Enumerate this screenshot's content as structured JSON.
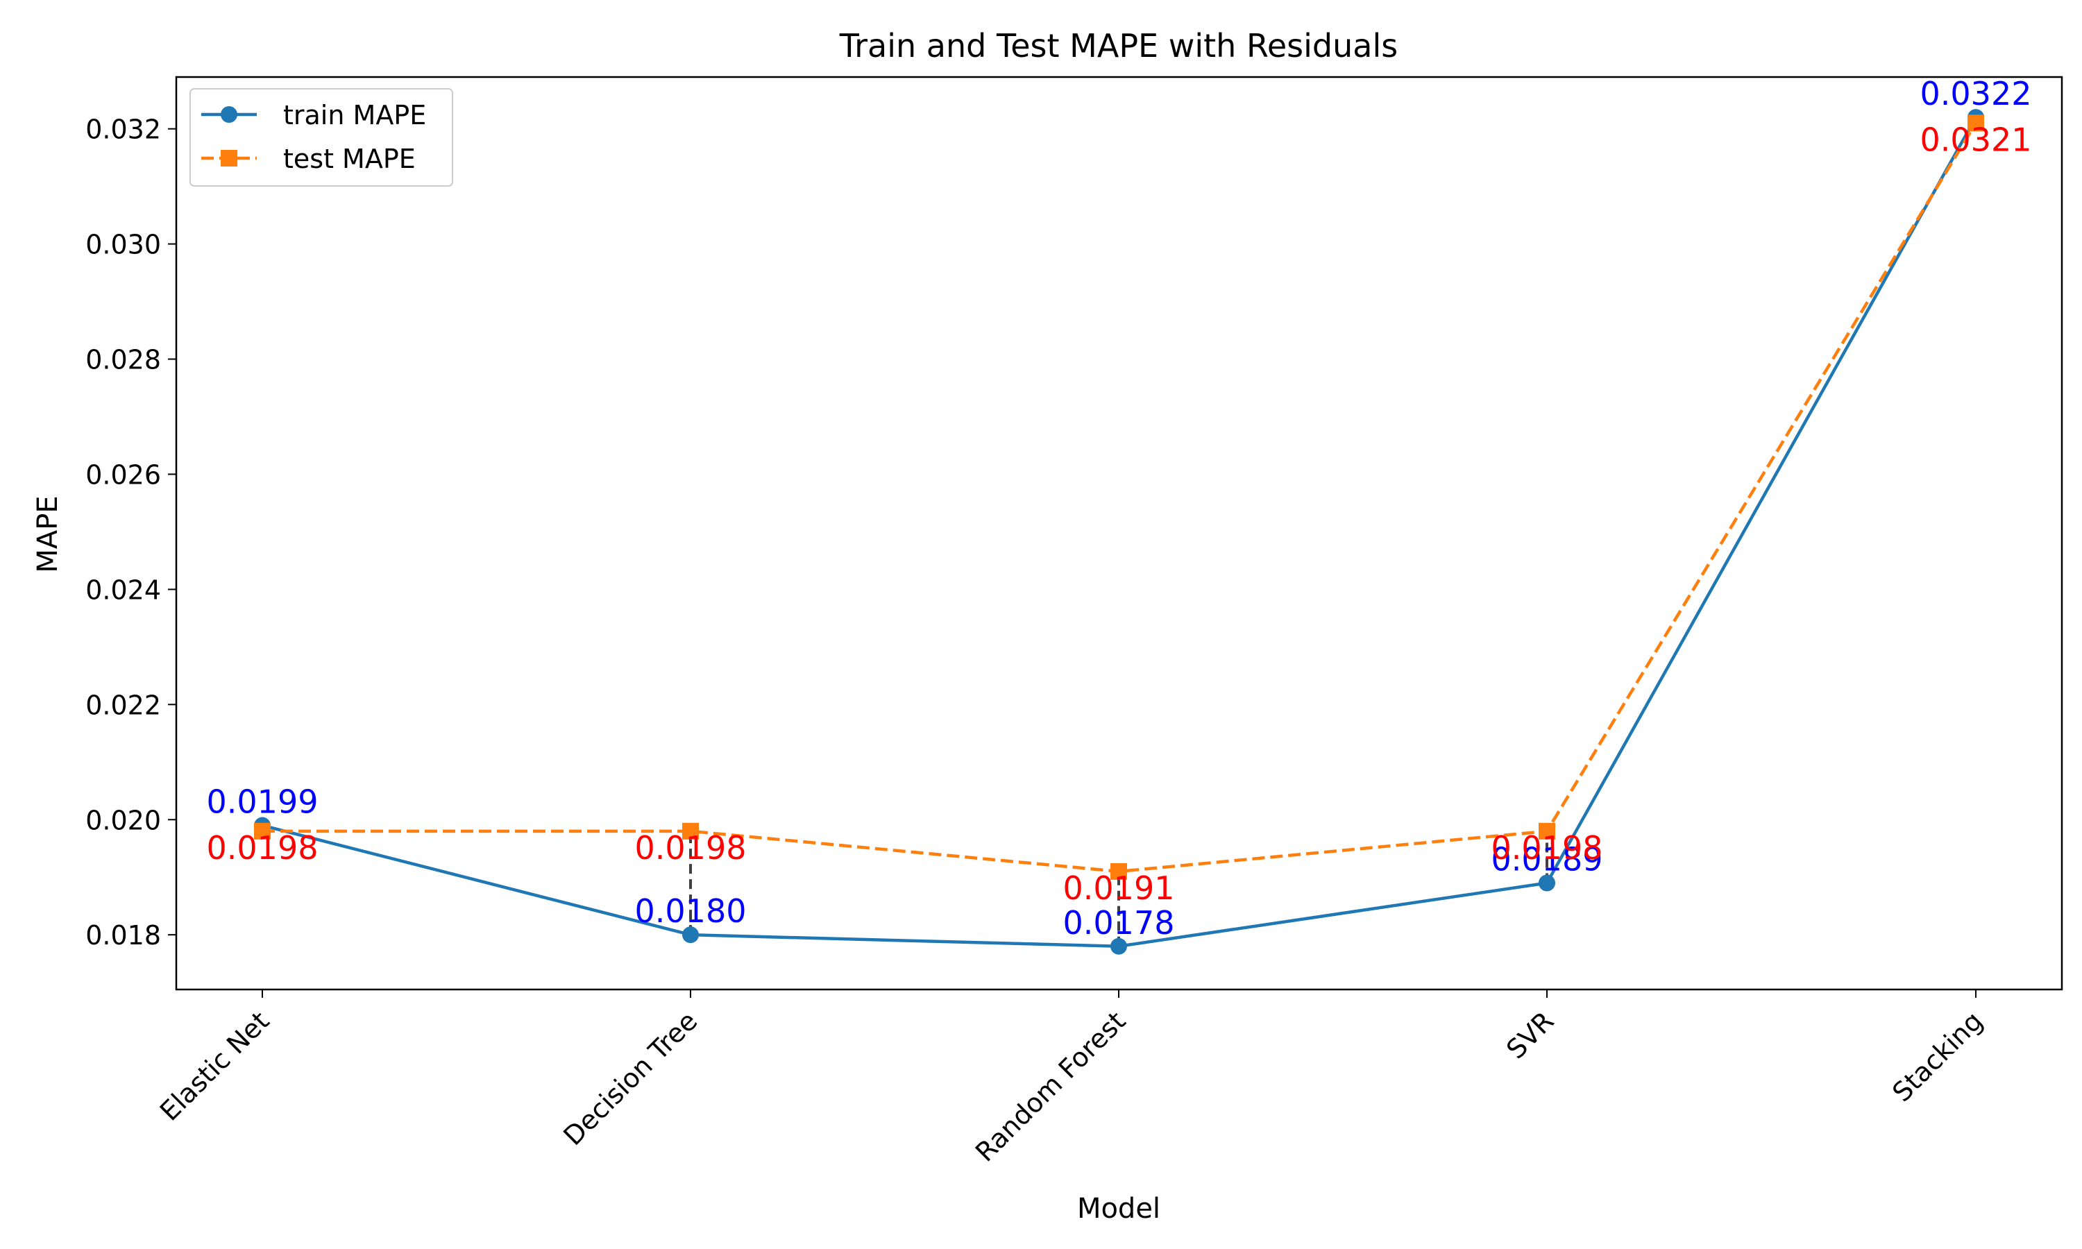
{
  "chart_data": {
    "type": "line",
    "title": "Train and Test MAPE with Residuals",
    "xlabel": "Model",
    "ylabel": "MAPE",
    "categories": [
      "Elastic Net",
      "Decision Tree",
      "Random Forest",
      "SVR",
      "Stacking"
    ],
    "ylim": [
      0.01705,
      0.0329
    ],
    "yticks": [
      0.018,
      0.02,
      0.022,
      0.024,
      0.026,
      0.028,
      0.03,
      0.032
    ],
    "ytick_labels": [
      "0.018",
      "0.020",
      "0.022",
      "0.024",
      "0.026",
      "0.028",
      "0.030",
      "0.032"
    ],
    "grid": false,
    "legend_position": "top-left",
    "series": [
      {
        "name": "train MAPE",
        "values": [
          0.0199,
          0.018,
          0.0178,
          0.0189,
          0.0322
        ],
        "labels": [
          "0.0199",
          "0.0180",
          "0.0178",
          "0.0189",
          "0.0322"
        ],
        "color": "#1f77b4",
        "label_color": "#0000ff",
        "marker": "circle",
        "linestyle": "solid"
      },
      {
        "name": "test MAPE",
        "values": [
          0.0198,
          0.0198,
          0.0191,
          0.0198,
          0.0321
        ],
        "labels": [
          "0.0198",
          "0.0198",
          "0.0191",
          "0.0198",
          "0.0321"
        ],
        "color": "#ff7f0e",
        "label_color": "#ff0000",
        "marker": "square",
        "linestyle": "dashed"
      }
    ],
    "residual_color": "#404040"
  }
}
